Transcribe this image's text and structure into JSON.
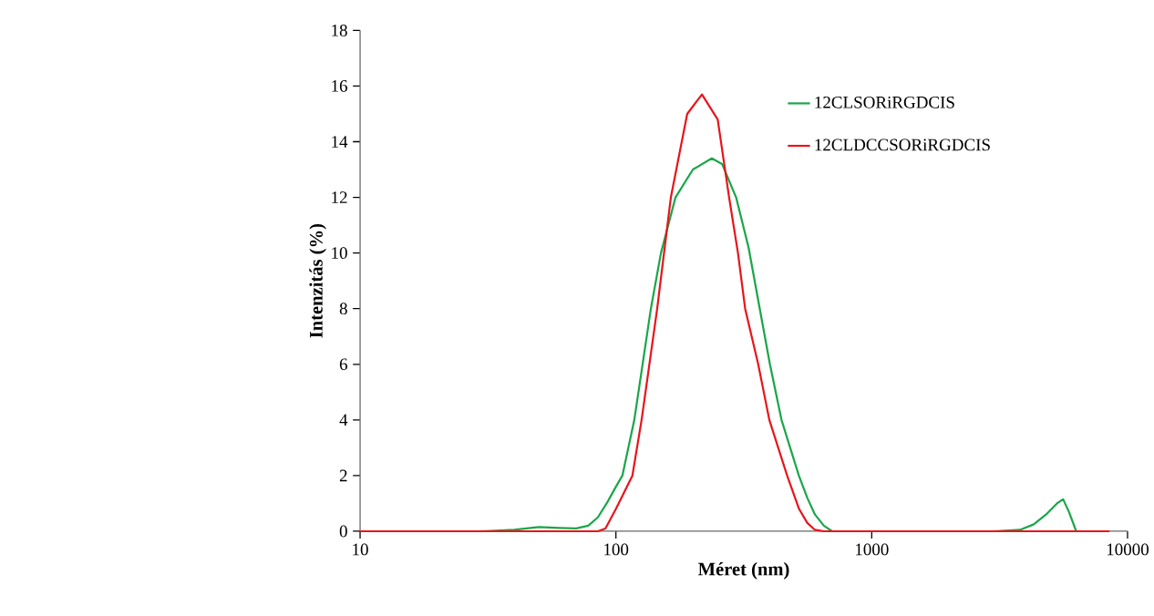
{
  "chart_data": {
    "type": "line",
    "xlabel": "Méret (nm)",
    "ylabel": "Intenzitás (%)",
    "log": "x",
    "xlim": [
      10,
      10000
    ],
    "xticks": [
      10,
      100,
      1000,
      10000
    ],
    "ylim": [
      0,
      18
    ],
    "yticks": [
      0,
      2,
      4,
      6,
      8,
      10,
      12,
      14,
      16,
      18
    ],
    "grid": false,
    "legend": "top right",
    "marker": "none",
    "line_style": "solid",
    "series": [
      {
        "name": "12CLSORiRGDCIS",
        "color": "#1aa64a",
        "x": [
          10,
          30,
          40,
          50,
          60,
          70,
          78,
          85,
          92,
          100,
          106,
          118,
          137,
          150,
          171,
          200,
          237,
          260,
          295,
          330,
          365,
          400,
          444,
          519,
          560,
          600,
          650,
          700,
          1000,
          3000,
          3800,
          4300,
          4800,
          5300,
          5600,
          5900,
          6300
        ],
        "values": [
          0,
          0,
          0.05,
          0.15,
          0.12,
          0.1,
          0.2,
          0.5,
          1.0,
          1.6,
          2,
          4,
          8,
          10,
          12,
          13.0,
          13.4,
          13.2,
          12,
          10.2,
          8,
          6,
          4,
          2,
          1.2,
          0.6,
          0.2,
          0,
          0,
          0,
          0.05,
          0.25,
          0.6,
          1.0,
          1.15,
          0.7,
          0
        ]
      },
      {
        "name": "12CLDCCSORiRGDCIS",
        "color": "#e8151b",
        "x": [
          10,
          85,
          91,
          100,
          116,
          126,
          145,
          164,
          190,
          217,
          250,
          277,
          300,
          320,
          360,
          398,
          467,
          520,
          560,
          600,
          650,
          1000,
          8500
        ],
        "values": [
          0,
          0,
          0.1,
          0.8,
          2,
          4,
          8,
          12,
          15.0,
          15.7,
          14.8,
          12,
          10,
          8,
          6,
          4,
          2,
          0.8,
          0.3,
          0.05,
          0,
          0,
          0
        ]
      }
    ]
  }
}
